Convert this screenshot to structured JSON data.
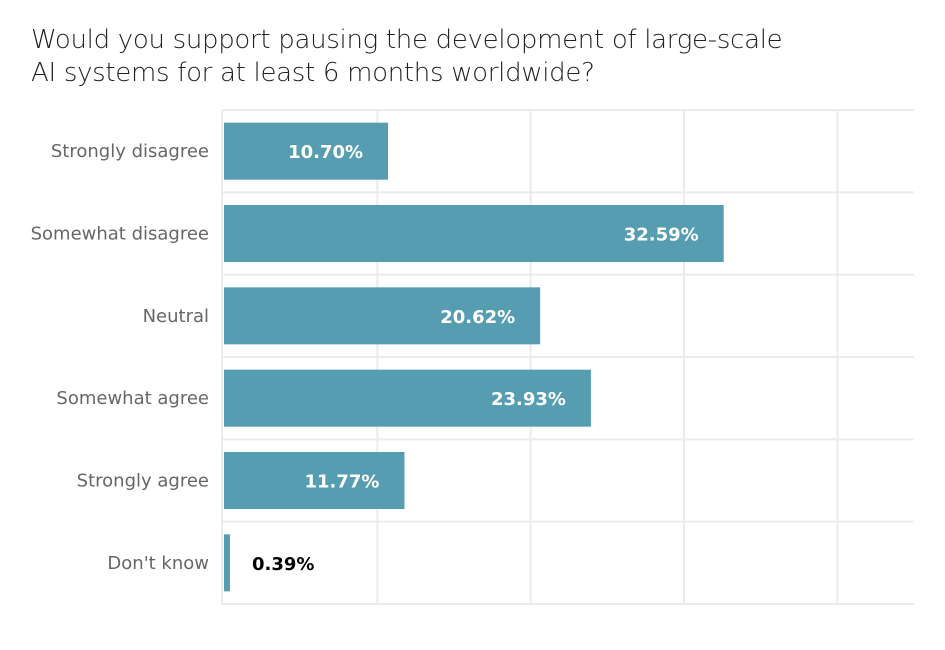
{
  "chart_data": {
    "type": "bar",
    "orientation": "horizontal",
    "title": "Would you support pausing the development of large-scale AI systems for at least 6 months worldwide?",
    "categories": [
      "Strongly disagree",
      "Somewhat disagree",
      "Neutral",
      "Somewhat agree",
      "Strongly agree",
      "Don't know"
    ],
    "values": [
      10.7,
      32.59,
      20.62,
      23.93,
      11.77,
      0.39
    ],
    "labels": [
      "10.70%",
      "32.59%",
      "20.62%",
      "23.93%",
      "11.77%",
      "0.39%"
    ],
    "xlabel": "",
    "ylabel": "",
    "xlim": [
      0,
      45
    ],
    "grid": true,
    "legend": "none",
    "bar_color": "#579db1"
  }
}
